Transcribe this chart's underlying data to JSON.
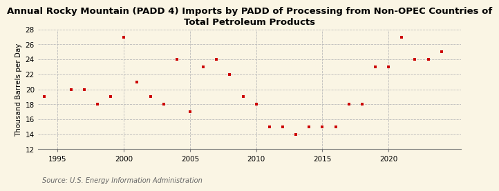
{
  "title": "Annual Rocky Mountain (PADD 4) Imports by PADD of Processing from Non-OPEC Countries of\nTotal Petroleum Products",
  "ylabel": "Thousand Barrels per Day",
  "source": "Source: U.S. Energy Information Administration",
  "background_color": "#faf5e4",
  "marker_color": "#cc0000",
  "years": [
    1994,
    1996,
    1997,
    1998,
    1999,
    2000,
    2001,
    2002,
    2003,
    2004,
    2005,
    2006,
    2007,
    2008,
    2009,
    2010,
    2011,
    2012,
    2013,
    2014,
    2015,
    2016,
    2017,
    2018,
    2019,
    2020,
    2021,
    2022,
    2023,
    2024
  ],
  "values": [
    19,
    20,
    20,
    18,
    19,
    27,
    21,
    19,
    18,
    24,
    17,
    23,
    24,
    22,
    19,
    18,
    15,
    15,
    14,
    15,
    15,
    15,
    18,
    18,
    23,
    23,
    27,
    24,
    24,
    25
  ],
  "xlim": [
    1993.5,
    2025.5
  ],
  "ylim": [
    12,
    28
  ],
  "yticks": [
    12,
    14,
    16,
    18,
    20,
    22,
    24,
    26,
    28
  ],
  "xticks": [
    1995,
    2000,
    2005,
    2010,
    2015,
    2020
  ],
  "grid_color": "#bbbbbb",
  "title_fontsize": 9.5,
  "label_fontsize": 7.5,
  "tick_fontsize": 7.5,
  "source_fontsize": 7
}
